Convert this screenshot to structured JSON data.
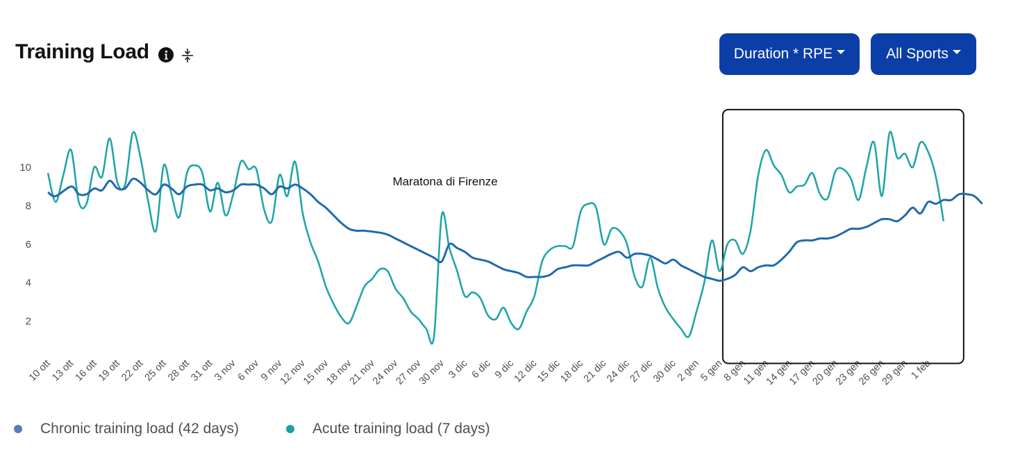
{
  "header": {
    "title": "Training Load",
    "metric_label": "Duration * RPE",
    "sport_label": "All Sports"
  },
  "colors": {
    "chronic": "#1f6aad",
    "acute": "#21a5a8",
    "button": "#0b3ea6",
    "legend_chronic_dot": "#5b78b8",
    "legend_acute_dot": "#1aa3a0"
  },
  "chart_data": {
    "type": "line",
    "title": "Training Load",
    "ylim": [
      0,
      12
    ],
    "yticks": [
      2,
      4,
      6,
      8,
      10
    ],
    "x_start": "10 ott",
    "x_ticks": [
      "10 ott",
      "13 ott",
      "16 ott",
      "19 ott",
      "22 ott",
      "25 ott",
      "28 ott",
      "31 ott",
      "3 nov",
      "6 nov",
      "9 nov",
      "12 nov",
      "15 nov",
      "18 nov",
      "21 nov",
      "24 nov",
      "27 nov",
      "30 nov",
      "3 dic",
      "6 dic",
      "9 dic",
      "12 dic",
      "15 dic",
      "18 dic",
      "21 dic",
      "24 dic",
      "27 dic",
      "30 dic",
      "2 gen",
      "5 gen",
      "8 gen",
      "11 gen",
      "14 gen",
      "17 gen",
      "20 gen",
      "23 gen",
      "26 gen",
      "29 gen",
      "1 feb"
    ],
    "annotation": {
      "text": "Maratona di Firenze",
      "day": 51
    },
    "highlight_box": {
      "day_start": 87.4,
      "day_end": 118.6,
      "y_low": -0.2,
      "y_high": 13.0
    },
    "series": [
      {
        "name": "Chronic training load (42 days)",
        "points": [
          [
            0,
            8.7
          ],
          [
            1,
            8.5
          ],
          [
            3,
            9.0
          ],
          [
            4,
            8.6
          ],
          [
            5,
            8.6
          ],
          [
            6,
            8.9
          ],
          [
            7,
            8.8
          ],
          [
            8,
            9.3
          ],
          [
            9,
            8.9
          ],
          [
            10,
            8.9
          ],
          [
            11,
            9.4
          ],
          [
            12,
            9.2
          ],
          [
            13,
            8.8
          ],
          [
            14,
            8.6
          ],
          [
            15,
            9.1
          ],
          [
            16,
            8.9
          ],
          [
            17,
            8.6
          ],
          [
            18,
            9.0
          ],
          [
            19,
            9.1
          ],
          [
            20,
            9.1
          ],
          [
            21,
            8.8
          ],
          [
            22,
            8.9
          ],
          [
            23,
            8.7
          ],
          [
            24,
            8.8
          ],
          [
            25,
            9.1
          ],
          [
            26,
            9.1
          ],
          [
            27,
            9.1
          ],
          [
            28,
            8.9
          ],
          [
            29,
            8.6
          ],
          [
            30,
            9.0
          ],
          [
            31,
            8.9
          ],
          [
            32,
            9.1
          ],
          [
            33,
            8.9
          ],
          [
            34,
            8.6
          ],
          [
            35,
            8.2
          ],
          [
            36,
            7.9
          ],
          [
            37,
            7.5
          ],
          [
            38,
            7.1
          ],
          [
            39,
            6.8
          ],
          [
            40,
            6.7
          ],
          [
            41,
            6.7
          ],
          [
            43,
            6.6
          ],
          [
            44,
            6.5
          ],
          [
            45,
            6.3
          ],
          [
            46,
            6.1
          ],
          [
            47,
            5.9
          ],
          [
            48,
            5.7
          ],
          [
            49,
            5.5
          ],
          [
            50,
            5.3
          ],
          [
            51,
            5.1
          ],
          [
            52,
            6.0
          ],
          [
            53,
            5.8
          ],
          [
            54,
            5.6
          ],
          [
            55,
            5.3
          ],
          [
            56,
            5.2
          ],
          [
            57,
            5.1
          ],
          [
            58,
            4.9
          ],
          [
            59,
            4.7
          ],
          [
            60,
            4.6
          ],
          [
            61,
            4.5
          ],
          [
            62,
            4.3
          ],
          [
            63,
            4.3
          ],
          [
            64,
            4.3
          ],
          [
            65,
            4.4
          ],
          [
            66,
            4.7
          ],
          [
            67,
            4.8
          ],
          [
            68,
            4.9
          ],
          [
            69,
            4.9
          ],
          [
            70,
            4.9
          ],
          [
            71,
            5.1
          ],
          [
            72,
            5.3
          ],
          [
            73,
            5.5
          ],
          [
            74,
            5.6
          ],
          [
            75,
            5.3
          ],
          [
            76,
            5.5
          ],
          [
            77,
            5.5
          ],
          [
            78,
            5.4
          ],
          [
            79,
            5.2
          ],
          [
            80,
            5.0
          ],
          [
            81,
            5.2
          ],
          [
            82,
            4.9
          ],
          [
            83,
            4.7
          ],
          [
            84,
            4.5
          ],
          [
            85,
            4.3
          ],
          [
            86,
            4.2
          ],
          [
            87,
            4.1
          ],
          [
            88,
            4.2
          ],
          [
            89,
            4.4
          ],
          [
            90,
            4.8
          ],
          [
            91,
            4.6
          ],
          [
            92,
            4.8
          ],
          [
            93,
            4.9
          ],
          [
            94,
            4.9
          ],
          [
            95,
            5.2
          ],
          [
            96,
            5.6
          ],
          [
            97,
            6.1
          ],
          [
            98,
            6.2
          ],
          [
            99,
            6.2
          ],
          [
            100,
            6.3
          ],
          [
            101,
            6.3
          ],
          [
            102,
            6.4
          ],
          [
            103,
            6.6
          ],
          [
            104,
            6.8
          ],
          [
            105,
            6.8
          ],
          [
            106,
            6.9
          ],
          [
            107,
            7.1
          ],
          [
            108,
            7.3
          ],
          [
            109,
            7.3
          ],
          [
            110,
            7.2
          ],
          [
            111,
            7.5
          ],
          [
            112,
            7.9
          ],
          [
            113,
            7.6
          ],
          [
            114,
            8.2
          ],
          [
            115,
            8.1
          ],
          [
            116,
            8.3
          ],
          [
            117,
            8.3
          ],
          [
            118,
            8.6
          ],
          [
            119,
            8.6
          ],
          [
            120,
            8.5
          ],
          [
            121,
            8.1
          ]
        ]
      },
      {
        "name": "Acute training load (7 days)",
        "points": [
          [
            0,
            9.7
          ],
          [
            1,
            8.2
          ],
          [
            2,
            9.6
          ],
          [
            3,
            10.9
          ],
          [
            4,
            8.2
          ],
          [
            5,
            8.1
          ],
          [
            6,
            10.0
          ],
          [
            7,
            9.5
          ],
          [
            8,
            11.5
          ],
          [
            9,
            9.2
          ],
          [
            10,
            9.1
          ],
          [
            11,
            11.8
          ],
          [
            12,
            10.5
          ],
          [
            13,
            8.2
          ],
          [
            14,
            6.7
          ],
          [
            15,
            10.1
          ],
          [
            16,
            8.6
          ],
          [
            17,
            7.4
          ],
          [
            18,
            9.7
          ],
          [
            19,
            10.1
          ],
          [
            20,
            9.7
          ],
          [
            21,
            7.7
          ],
          [
            22,
            9.2
          ],
          [
            23,
            7.5
          ],
          [
            24,
            8.6
          ],
          [
            25,
            10.3
          ],
          [
            26,
            9.9
          ],
          [
            27,
            9.9
          ],
          [
            28,
            7.8
          ],
          [
            29,
            7.2
          ],
          [
            30,
            9.6
          ],
          [
            31,
            8.5
          ],
          [
            32,
            10.3
          ],
          [
            33,
            7.6
          ],
          [
            34,
            6.1
          ],
          [
            35,
            5.1
          ],
          [
            36,
            3.8
          ],
          [
            37,
            2.9
          ],
          [
            38,
            2.2
          ],
          [
            39,
            1.9
          ],
          [
            40,
            2.8
          ],
          [
            41,
            3.8
          ],
          [
            42,
            4.2
          ],
          [
            43,
            4.7
          ],
          [
            44,
            4.6
          ],
          [
            45,
            3.7
          ],
          [
            46,
            3.2
          ],
          [
            47,
            2.5
          ],
          [
            48,
            2.1
          ],
          [
            49,
            1.6
          ],
          [
            50,
            1.2
          ],
          [
            51,
            7.5
          ],
          [
            52,
            5.8
          ],
          [
            53,
            4.6
          ],
          [
            54,
            3.3
          ],
          [
            55,
            3.5
          ],
          [
            56,
            3.2
          ],
          [
            57,
            2.3
          ],
          [
            58,
            2.1
          ],
          [
            59,
            2.7
          ],
          [
            60,
            1.9
          ],
          [
            61,
            1.6
          ],
          [
            62,
            2.5
          ],
          [
            63,
            3.3
          ],
          [
            64,
            5.1
          ],
          [
            65,
            5.7
          ],
          [
            66,
            5.9
          ],
          [
            67,
            5.9
          ],
          [
            68,
            5.9
          ],
          [
            69,
            7.7
          ],
          [
            70,
            8.1
          ],
          [
            71,
            7.9
          ],
          [
            72,
            6.0
          ],
          [
            73,
            6.8
          ],
          [
            74,
            6.7
          ],
          [
            75,
            6.0
          ],
          [
            76,
            4.3
          ],
          [
            77,
            3.8
          ],
          [
            78,
            5.3
          ],
          [
            79,
            3.7
          ],
          [
            80,
            2.7
          ],
          [
            81,
            2.1
          ],
          [
            82,
            1.6
          ],
          [
            83,
            1.2
          ],
          [
            84,
            2.5
          ],
          [
            85,
            4.0
          ],
          [
            86,
            6.2
          ],
          [
            87,
            4.6
          ],
          [
            88,
            6.0
          ],
          [
            89,
            6.2
          ],
          [
            90,
            5.5
          ],
          [
            91,
            6.7
          ],
          [
            92,
            9.6
          ],
          [
            93,
            10.9
          ],
          [
            94,
            10.1
          ],
          [
            95,
            9.6
          ],
          [
            96,
            8.7
          ],
          [
            97,
            9.0
          ],
          [
            98,
            9.1
          ],
          [
            99,
            9.7
          ],
          [
            100,
            8.6
          ],
          [
            101,
            8.4
          ],
          [
            102,
            9.8
          ],
          [
            103,
            9.9
          ],
          [
            104,
            9.4
          ],
          [
            105,
            8.3
          ],
          [
            106,
            10.0
          ],
          [
            107,
            11.3
          ],
          [
            108,
            8.5
          ],
          [
            109,
            11.8
          ],
          [
            110,
            10.5
          ],
          [
            111,
            10.7
          ],
          [
            112,
            10.0
          ],
          [
            113,
            11.3
          ],
          [
            114,
            10.8
          ],
          [
            115,
            9.5
          ],
          [
            116,
            7.2
          ]
        ]
      }
    ]
  },
  "legend": {
    "chronic": "Chronic training load (42 days)",
    "acute": "Acute training load (7 days)"
  }
}
